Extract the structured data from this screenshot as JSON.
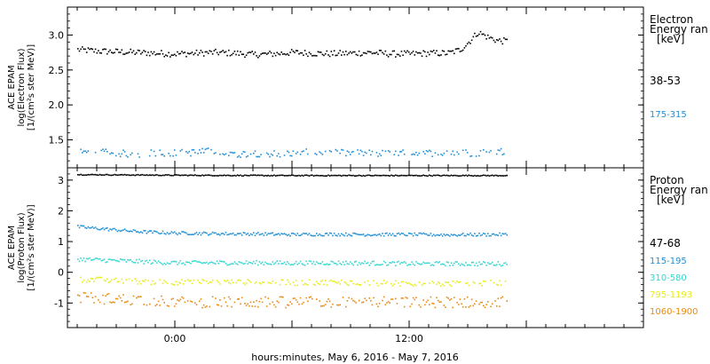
{
  "colors": {
    "frame": "#000000",
    "black": "#000000",
    "blue": "#1f8fd6",
    "cyan": "#35d6d0",
    "yellow": "#e6ec1a",
    "orange": "#e88a14"
  },
  "x_axis": {
    "label": "hours:minutes, May  6, 2016 - May  7, 2016",
    "ticks": [
      {
        "label": "0:00",
        "hour": 0
      },
      {
        "label": "12:00",
        "hour": 12
      }
    ],
    "range_hours": [
      -5.5,
      24.0
    ]
  },
  "chart_data": [
    {
      "type": "scatter",
      "panel": "electron",
      "ylabel": [
        "ACE EPAM",
        "log(Electron Flux)",
        "[1/(cm²s ster MeV)]"
      ],
      "ylim": [
        1.1,
        3.4
      ],
      "yticks": [
        "1.5",
        "2.0",
        "2.5",
        "3.0"
      ],
      "ytick_values": [
        1.5,
        2.0,
        2.5,
        3.0
      ],
      "legend_title": [
        "Electron",
        "Energy ran",
        "[keV]"
      ],
      "series": [
        {
          "name": "38-53",
          "color": "black",
          "x": [
            -5.0,
            -4.0,
            -3.0,
            -2.0,
            -1.0,
            0.0,
            1.0,
            2.0,
            3.0,
            4.0,
            5.0,
            6.0,
            7.0,
            8.0,
            9.0,
            10.0,
            11.0,
            12.0,
            13.0,
            14.0,
            14.6,
            15.0,
            15.5,
            16.0,
            16.5,
            17.0
          ],
          "y": [
            2.8,
            2.78,
            2.77,
            2.76,
            2.75,
            2.74,
            2.75,
            2.76,
            2.75,
            2.73,
            2.74,
            2.76,
            2.75,
            2.74,
            2.75,
            2.76,
            2.74,
            2.74,
            2.75,
            2.75,
            2.8,
            2.9,
            3.05,
            2.98,
            2.93,
            2.92
          ]
        },
        {
          "name": "175-315",
          "color": "blue",
          "x": [
            -5.0,
            -4.0,
            -3.0,
            -2.0,
            -1.0,
            0.0,
            1.0,
            2.0,
            3.0,
            4.0,
            5.0,
            6.0,
            7.0,
            8.0,
            9.0,
            10.0,
            11.0,
            12.0,
            13.0,
            14.0,
            15.0,
            16.0,
            17.0
          ],
          "y": [
            1.33,
            1.33,
            1.32,
            1.3,
            1.33,
            1.32,
            1.33,
            1.35,
            1.3,
            1.32,
            1.31,
            1.32,
            1.33,
            1.32,
            1.32,
            1.32,
            1.31,
            1.32,
            1.32,
            1.33,
            1.32,
            1.33,
            1.35
          ]
        }
      ]
    },
    {
      "type": "scatter",
      "panel": "proton",
      "ylabel": [
        "ACE EPAM",
        "log(Proton Flux)",
        "[1/(cm²s ster MeV)]"
      ],
      "ylim": [
        -1.8,
        3.4
      ],
      "yticks": [
        "-1",
        "0",
        "1",
        "2",
        "3"
      ],
      "ytick_values": [
        -1,
        0,
        1,
        2,
        3
      ],
      "legend_title": [
        "Proton",
        "Energy ran",
        "[keV]"
      ],
      "series": [
        {
          "name": "47-68",
          "color": "black",
          "x": [
            -5.0,
            0.0,
            5.0,
            10.0,
            15.0,
            17.0
          ],
          "y": [
            3.2,
            3.18,
            3.17,
            3.17,
            3.17,
            3.17
          ]
        },
        {
          "name": "115-195",
          "color": "blue",
          "x": [
            -5.0,
            -4.0,
            -3.0,
            -2.0,
            -1.0,
            0.0,
            2.0,
            4.0,
            6.0,
            8.0,
            10.0,
            12.0,
            14.0,
            16.0,
            17.0
          ],
          "y": [
            1.5,
            1.45,
            1.4,
            1.35,
            1.32,
            1.3,
            1.28,
            1.27,
            1.25,
            1.26,
            1.25,
            1.25,
            1.24,
            1.25,
            1.25
          ]
        },
        {
          "name": "310-580",
          "color": "cyan",
          "x": [
            -5.0,
            -3.0,
            -1.0,
            0.0,
            2.0,
            4.0,
            6.0,
            8.0,
            10.0,
            12.0,
            14.0,
            16.0,
            17.0
          ],
          "y": [
            0.45,
            0.4,
            0.35,
            0.33,
            0.33,
            0.33,
            0.32,
            0.33,
            0.32,
            0.3,
            0.3,
            0.3,
            0.3
          ]
        },
        {
          "name": "795-1193",
          "color": "yellow",
          "x": [
            -5.0,
            -3.0,
            -1.0,
            0.0,
            2.0,
            4.0,
            6.0,
            8.0,
            10.0,
            12.0,
            14.0,
            16.0,
            17.0
          ],
          "y": [
            -0.2,
            -0.25,
            -0.3,
            -0.3,
            -0.3,
            -0.3,
            -0.32,
            -0.3,
            -0.32,
            -0.35,
            -0.35,
            -0.33,
            -0.33
          ]
        },
        {
          "name": "1060-1900",
          "color": "orange",
          "x": [
            -5.0,
            -3.0,
            -1.0,
            0.0,
            2.0,
            4.0,
            6.0,
            8.0,
            10.0,
            12.0,
            14.0,
            16.0,
            17.0
          ],
          "y": [
            -0.8,
            -0.85,
            -0.9,
            -0.95,
            -0.95,
            -0.95,
            -0.95,
            -0.95,
            -0.95,
            -0.95,
            -0.95,
            -0.95,
            -0.95
          ]
        }
      ]
    }
  ]
}
